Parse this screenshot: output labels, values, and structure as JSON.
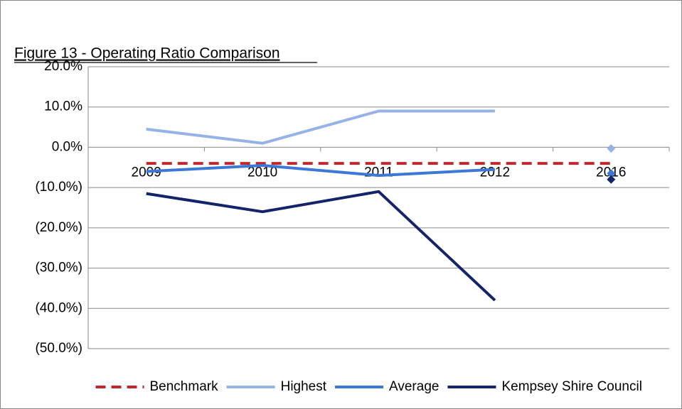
{
  "chart_data": {
    "type": "line",
    "title": "Figure 13 - Operating Ratio Comparison",
    "categories": [
      "2009",
      "2010",
      "2011",
      "2012",
      "2016"
    ],
    "series": [
      {
        "name": "Benchmark",
        "color": "#c0272d",
        "dashed": true,
        "values": [
          -4,
          -4,
          -4,
          -4,
          -4
        ]
      },
      {
        "name": "Highest",
        "color": "#95b3e6",
        "values": [
          4.5,
          1,
          9,
          9,
          null
        ],
        "marker_values": [
          null,
          null,
          null,
          null,
          -0.3
        ]
      },
      {
        "name": "Average",
        "color": "#3b78d8",
        "values": [
          -6,
          -4.5,
          -7,
          -5.5,
          null
        ],
        "marker_values": [
          null,
          null,
          null,
          null,
          -6.5
        ]
      },
      {
        "name": "Kempsey Shire Council",
        "color": "#13246b",
        "values": [
          -11.5,
          -16,
          -11,
          -38,
          null
        ],
        "marker_values": [
          null,
          null,
          null,
          null,
          -8
        ]
      }
    ],
    "ylim": [
      -50,
      20
    ],
    "yticks": [
      {
        "value": 20,
        "label": "20.0%"
      },
      {
        "value": 10,
        "label": "10.0%"
      },
      {
        "value": 0,
        "label": "0.0%"
      },
      {
        "value": -10,
        "label": "(10.0%)"
      },
      {
        "value": -20,
        "label": "(20.0%)"
      },
      {
        "value": -30,
        "label": "(30.0%)"
      },
      {
        "value": -40,
        "label": "(40.0%)"
      },
      {
        "value": -50,
        "label": "(50.0%)"
      }
    ],
    "grid": true,
    "legend": "bottom"
  }
}
